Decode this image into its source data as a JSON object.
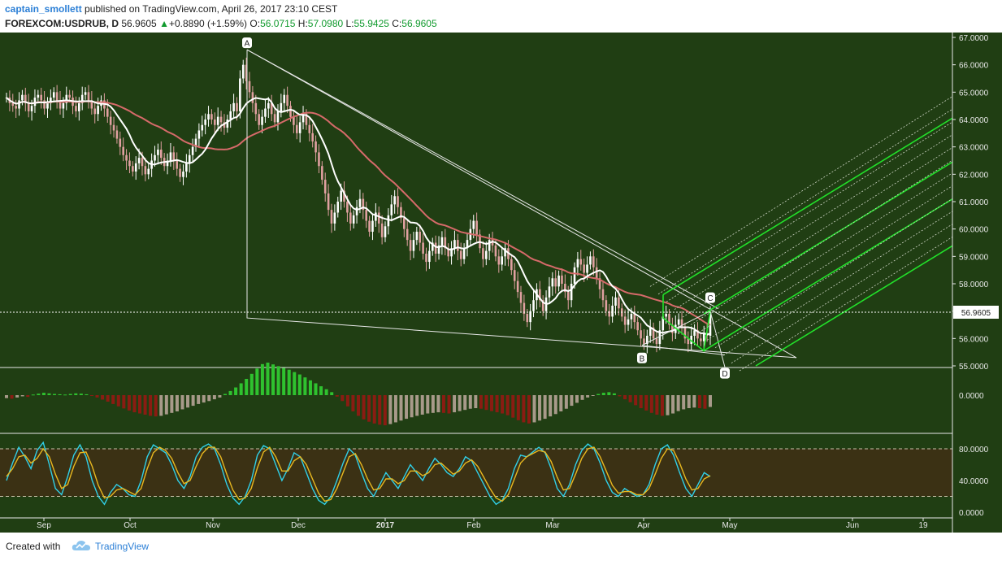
{
  "header": {
    "author": "captain_smollett",
    "published_text": " published on TradingView.com, April 26, 2017 23:10 CEST",
    "symbol": "FOREXCOM:USDRUB, D",
    "last": "56.9605",
    "change": "+0.8890 (+1.59%)",
    "open_label": "O:",
    "open": "56.0715",
    "high_label": "H:",
    "high": "57.0980",
    "low_label": "L:",
    "low": "55.9425",
    "close_label": "C:",
    "close": "56.9605"
  },
  "footer": {
    "created_with": "Created with",
    "brand": "TradingView"
  },
  "colors": {
    "background": "#203e13",
    "oscillator_band": "#3b3114",
    "bull_candle": "#ffffff",
    "bear_candle": "#e0a0a0",
    "sma_fast": "#ffffff",
    "sma_slow": "#d66a6a",
    "pitchfork": "#22e02a",
    "hist_pos": "#2fc22f",
    "hist_neg": "#8a1c12",
    "hist_fade": "#a89a8a",
    "stoch_k": "#30d0e8",
    "stoch_d": "#e8b820"
  },
  "chart_data": [
    {
      "type": "candlestick",
      "name": "price",
      "symbol": "FOREXCOM:USDRUB",
      "timeframe": "D",
      "ylim": [
        55.0,
        67.0
      ],
      "y_ticks": [
        "55.0000",
        "56.0000",
        "57.0000",
        "58.0000",
        "59.0000",
        "60.0000",
        "61.0000",
        "62.0000",
        "63.0000",
        "64.0000",
        "65.0000",
        "66.0000",
        "67.0000"
      ],
      "x_ticks": [
        "Sep",
        "Oct",
        "Nov",
        "Dec",
        "2017",
        "Feb",
        "Mar",
        "Apr",
        "May",
        "Jun",
        "19"
      ],
      "last_price_label": "56.9605",
      "last_price": 56.9605,
      "closes": [
        64.8,
        64.6,
        64.5,
        64.4,
        64.7,
        64.9,
        64.6,
        64.3,
        64.5,
        64.8,
        64.9,
        64.7,
        64.4,
        64.6,
        64.8,
        65.0,
        64.7,
        64.4,
        64.6,
        64.9,
        64.8,
        64.5,
        64.3,
        64.6,
        64.9,
        65.0,
        64.7,
        64.4,
        64.2,
        64.5,
        64.7,
        64.4,
        64.1,
        63.8,
        63.6,
        63.3,
        63.0,
        62.7,
        62.5,
        62.3,
        62.1,
        62.4,
        62.6,
        62.3,
        62.0,
        62.2,
        62.5,
        62.7,
        62.9,
        62.6,
        62.3,
        62.5,
        62.8,
        62.5,
        62.2,
        61.9,
        62.1,
        62.4,
        62.7,
        63.0,
        63.3,
        63.6,
        63.8,
        64.0,
        64.2,
        64.0,
        63.8,
        64.1,
        63.9,
        63.7,
        64.0,
        64.3,
        64.6,
        64.3,
        65.5,
        66.0,
        65.4,
        65.0,
        64.6,
        64.2,
        63.8,
        64.1,
        64.4,
        64.6,
        64.2,
        63.9,
        64.3,
        64.6,
        64.9,
        64.5,
        64.1,
        63.8,
        63.5,
        63.9,
        64.2,
        63.8,
        63.5,
        63.2,
        62.8,
        62.3,
        61.8,
        61.3,
        60.7,
        60.2,
        60.6,
        61.0,
        61.4,
        61.0,
        60.6,
        60.2,
        60.5,
        60.8,
        61.1,
        60.7,
        60.3,
        59.9,
        60.3,
        60.6,
        60.2,
        59.7,
        60.1,
        60.5,
        60.9,
        61.2,
        60.8,
        60.4,
        60.0,
        59.6,
        59.2,
        59.6,
        59.9,
        59.5,
        59.1,
        58.8,
        59.2,
        59.5,
        59.1,
        59.4,
        59.7,
        59.3,
        59.0,
        59.3,
        59.6,
        59.2,
        58.9,
        59.3,
        59.6,
        60.0,
        60.3,
        59.8,
        59.3,
        58.9,
        59.2,
        59.6,
        59.4,
        59.0,
        58.7,
        59.0,
        59.3,
        58.9,
        58.5,
        58.1,
        57.7,
        57.3,
        56.9,
        56.6,
        57.0,
        57.4,
        57.8,
        57.4,
        57.0,
        57.5,
        57.9,
        58.2,
        57.9,
        58.3,
        58.0,
        57.7,
        57.4,
        58.0,
        58.6,
        58.9,
        58.7,
        58.4,
        58.7,
        59.0,
        58.6,
        58.2,
        57.8,
        57.4,
        57.0,
        56.8,
        57.2,
        57.5,
        57.1,
        56.8,
        56.5,
        56.7,
        56.9,
        56.6,
        56.3,
        56.0,
        55.8,
        56.1,
        56.4,
        56.0,
        55.8,
        56.3,
        56.8,
        56.9,
        56.5,
        56.2,
        56.5,
        56.7,
        56.4,
        56.0,
        55.8,
        56.1,
        56.3,
        56.0,
        55.9,
        56.2,
        56.1,
        56.96
      ]
    },
    {
      "type": "bar",
      "name": "macd-histogram",
      "y_ticks": [
        "0.0000"
      ],
      "ylim": [
        -1.4,
        1.4
      ],
      "values": [
        -0.1,
        -0.12,
        -0.08,
        -0.04,
        -0.06,
        0.02,
        0.05,
        0.08,
        0.06,
        0.04,
        0.03,
        0.02,
        0.04,
        0.06,
        0.05,
        0.03,
        -0.02,
        -0.08,
        -0.15,
        -0.22,
        -0.3,
        -0.38,
        -0.45,
        -0.52,
        -0.58,
        -0.62,
        -0.66,
        -0.7,
        -0.72,
        -0.7,
        -0.65,
        -0.6,
        -0.55,
        -0.48,
        -0.42,
        -0.36,
        -0.3,
        -0.25,
        -0.2,
        -0.14,
        -0.08,
        0.04,
        0.14,
        0.26,
        0.4,
        0.55,
        0.72,
        0.9,
        1.05,
        1.1,
        1.04,
        0.98,
        0.92,
        0.86,
        0.78,
        0.7,
        0.6,
        0.5,
        0.4,
        0.3,
        0.2,
        0.1,
        -0.05,
        -0.2,
        -0.38,
        -0.55,
        -0.7,
        -0.82,
        -0.9,
        -0.96,
        -1.0,
        -1.02,
        -0.98,
        -0.92,
        -0.86,
        -0.8,
        -0.75,
        -0.7,
        -0.66,
        -0.62,
        -0.6,
        -0.58,
        -0.6,
        -0.62,
        -0.58,
        -0.54,
        -0.5,
        -0.46,
        -0.44,
        -0.46,
        -0.5,
        -0.54,
        -0.58,
        -0.62,
        -0.68,
        -0.76,
        -0.85,
        -0.92,
        -0.96,
        -0.92,
        -0.86,
        -0.8,
        -0.72,
        -0.64,
        -0.55,
        -0.46,
        -0.36,
        -0.26,
        -0.16,
        -0.08,
        -0.02,
        0.04,
        0.08,
        0.1,
        0.06,
        -0.04,
        -0.14,
        -0.24,
        -0.34,
        -0.44,
        -0.52,
        -0.6,
        -0.66,
        -0.7,
        -0.68,
        -0.62,
        -0.54,
        -0.48,
        -0.44,
        -0.42,
        -0.44,
        -0.46,
        -0.4
      ]
    },
    {
      "type": "line",
      "name": "stochastic",
      "ylim": [
        0,
        100
      ],
      "y_ticks": [
        "0.0000",
        "40.0000",
        "80.0000"
      ],
      "band": [
        20,
        80
      ],
      "series": [
        {
          "values": [
            40,
            62,
            82,
            70,
            55,
            78,
            88,
            60,
            30,
            22,
            45,
            72,
            85,
            70,
            40,
            20,
            10,
            25,
            35,
            30,
            22,
            20,
            40,
            70,
            85,
            80,
            75,
            60,
            40,
            30,
            45,
            70,
            82,
            86,
            80,
            60,
            35,
            18,
            10,
            20,
            40,
            72,
            84,
            80,
            60,
            40,
            55,
            75,
            70,
            50,
            30,
            15,
            10,
            20,
            40,
            62,
            80,
            72,
            50,
            30,
            20,
            35,
            50,
            40,
            30,
            45,
            60,
            50,
            40,
            55,
            68,
            60,
            50,
            45,
            55,
            70,
            65,
            50,
            35,
            20,
            10,
            15,
            30,
            55,
            72,
            70,
            76,
            82,
            75,
            55,
            30,
            20,
            35,
            60,
            78,
            86,
            80,
            62,
            40,
            25,
            20,
            30,
            25,
            20,
            22,
            35,
            60,
            80,
            85,
            72,
            50,
            30,
            20,
            35,
            50,
            45
          ]
        },
        {
          "values": [
            45,
            55,
            70,
            72,
            62,
            68,
            80,
            70,
            48,
            30,
            35,
            58,
            75,
            76,
            58,
            34,
            18,
            20,
            28,
            30,
            26,
            22,
            30,
            55,
            75,
            82,
            78,
            68,
            50,
            36,
            40,
            58,
            74,
            82,
            82,
            70,
            48,
            28,
            16,
            18,
            30,
            56,
            76,
            82,
            70,
            52,
            52,
            65,
            70,
            60,
            42,
            24,
            14,
            16,
            30,
            50,
            70,
            74,
            60,
            42,
            28,
            30,
            42,
            42,
            36,
            40,
            52,
            52,
            46,
            50,
            60,
            62,
            55,
            48,
            52,
            62,
            66,
            58,
            44,
            30,
            18,
            14,
            22,
            42,
            62,
            70,
            74,
            78,
            76,
            64,
            44,
            28,
            30,
            48,
            68,
            80,
            82,
            70,
            52,
            34,
            24,
            26,
            26,
            22,
            22,
            30,
            48,
            68,
            80,
            78,
            62,
            42,
            28,
            30,
            42,
            46
          ]
        }
      ]
    }
  ]
}
